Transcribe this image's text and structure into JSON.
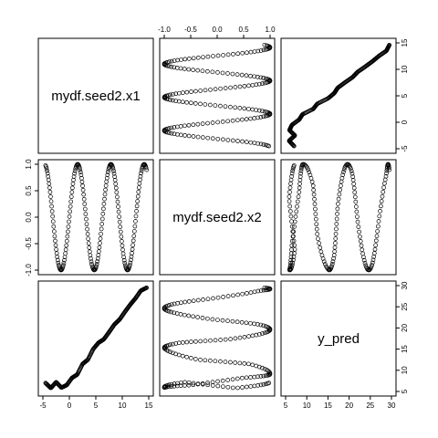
{
  "chart_data": {
    "type": "scatter",
    "matrix": "pairs",
    "variables": [
      "mydf.seed2.x1",
      "mydf.seed2.x2",
      "y_pred"
    ],
    "ranges": [
      [
        -5,
        15
      ],
      [
        -1,
        1
      ],
      [
        5,
        30
      ]
    ],
    "ticks": [
      [
        "-5",
        "0",
        "5",
        "10",
        "15"
      ],
      [
        "-1.0",
        "-0.5",
        "0.0",
        "0.5",
        "1.0"
      ],
      [
        "5",
        "10",
        "15",
        "20",
        "25",
        "30"
      ]
    ],
    "tick_values": [
      [
        -5,
        0,
        5,
        10,
        15
      ],
      [
        -1.0,
        -0.5,
        0.0,
        0.5,
        1.0
      ],
      [
        5,
        10,
        15,
        20,
        25,
        30
      ]
    ],
    "marker": "open-circle",
    "grid": false,
    "legend": "none",
    "n_points": 200,
    "x1_range": [
      -4.5,
      14.6
    ],
    "x2_definition": "sin(x1)",
    "y_pred_points": [
      [
        -4.5,
        7.0
      ],
      [
        -3.5,
        5.8
      ],
      [
        -2.5,
        7.2
      ],
      [
        -1.5,
        5.9
      ],
      [
        -0.5,
        6.5
      ],
      [
        0.5,
        8.2
      ],
      [
        1.5,
        9.0
      ],
      [
        2.5,
        11.5
      ],
      [
        3.5,
        12.5
      ],
      [
        4.5,
        15.0
      ],
      [
        5.5,
        16.5
      ],
      [
        6.5,
        17.3
      ],
      [
        7.5,
        19.0
      ],
      [
        8.5,
        20.8
      ],
      [
        9.5,
        22.0
      ],
      [
        10.5,
        23.8
      ],
      [
        11.5,
        25.5
      ],
      [
        12.5,
        27.0
      ],
      [
        13.5,
        28.8
      ],
      [
        14.6,
        29.5
      ]
    ]
  },
  "colors": {
    "points": "#000000",
    "frame": "#000000",
    "background": "#ffffff"
  }
}
